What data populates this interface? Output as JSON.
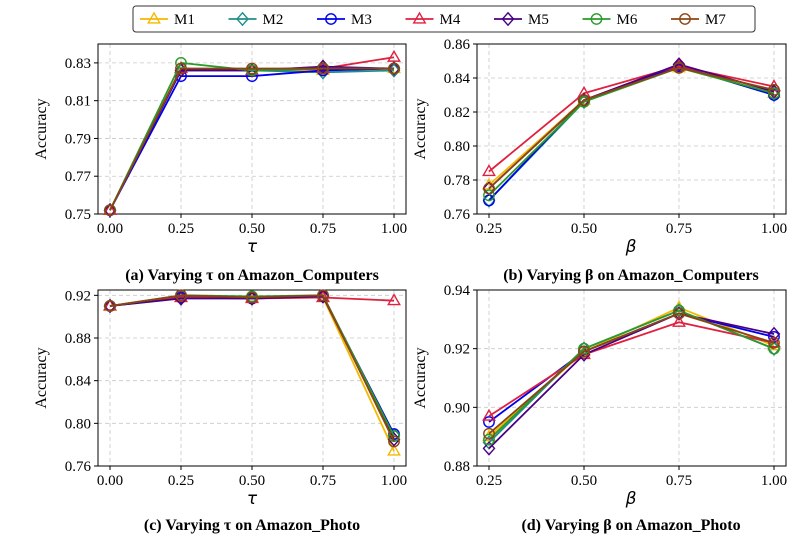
{
  "legend": {
    "placement": "top-center",
    "entries": [
      {
        "name": "M1",
        "color": "#f5b800",
        "marker": "triangle"
      },
      {
        "name": "M2",
        "color": "#1f8f8a",
        "marker": "diamond"
      },
      {
        "name": "M3",
        "color": "#0000ee",
        "marker": "circle"
      },
      {
        "name": "M4",
        "color": "#e0203e",
        "marker": "triangle"
      },
      {
        "name": "M5",
        "color": "#4b0082",
        "marker": "diamond"
      },
      {
        "name": "M6",
        "color": "#2a9a2a",
        "marker": "circle"
      },
      {
        "name": "M7",
        "color": "#8b4513",
        "marker": "circle"
      }
    ]
  },
  "chart_data": [
    {
      "type": "line",
      "caption": "(a) Varying τ on Amazon_Computers",
      "xlabel": "τ",
      "ylabel": "Accuracy",
      "grid": true,
      "x": [
        0.0,
        0.25,
        0.5,
        0.75,
        1.0
      ],
      "xticks": [
        "0.00",
        "0.25",
        "0.50",
        "0.75",
        "1.00"
      ],
      "ylim": [
        0.75,
        0.84
      ],
      "yticks": [
        "0.75",
        "0.77",
        "0.79",
        "0.81",
        "0.83"
      ],
      "series": [
        {
          "name": "M1",
          "values": [
            0.752,
            0.827,
            0.826,
            0.826,
            0.827
          ]
        },
        {
          "name": "M2",
          "values": [
            0.752,
            0.826,
            0.826,
            0.825,
            0.826
          ]
        },
        {
          "name": "M3",
          "values": [
            0.752,
            0.823,
            0.823,
            0.826,
            0.827
          ]
        },
        {
          "name": "M4",
          "values": [
            0.752,
            0.827,
            0.826,
            0.827,
            0.833
          ]
        },
        {
          "name": "M5",
          "values": [
            0.752,
            0.826,
            0.826,
            0.828,
            0.827
          ]
        },
        {
          "name": "M6",
          "values": [
            0.752,
            0.83,
            0.826,
            0.827,
            0.827
          ]
        },
        {
          "name": "M7",
          "values": [
            0.752,
            0.827,
            0.827,
            0.827,
            0.827
          ]
        }
      ]
    },
    {
      "type": "line",
      "caption": "(b) Varying β on Amazon_Computers",
      "xlabel": "β",
      "ylabel": "Accuracy",
      "grid": true,
      "x": [
        0.25,
        0.5,
        0.75,
        1.0
      ],
      "xticks": [
        "0.25",
        "0.50",
        "0.75",
        "1.00"
      ],
      "ylim": [
        0.76,
        0.86
      ],
      "yticks": [
        "0.76",
        "0.78",
        "0.80",
        "0.82",
        "0.84",
        "0.86"
      ],
      "series": [
        {
          "name": "M1",
          "values": [
            0.777,
            0.827,
            0.846,
            0.831
          ]
        },
        {
          "name": "M2",
          "values": [
            0.768,
            0.826,
            0.847,
            0.83
          ]
        },
        {
          "name": "M3",
          "values": [
            0.768,
            0.827,
            0.847,
            0.83
          ]
        },
        {
          "name": "M4",
          "values": [
            0.785,
            0.831,
            0.847,
            0.835
          ]
        },
        {
          "name": "M5",
          "values": [
            0.775,
            0.827,
            0.848,
            0.832
          ]
        },
        {
          "name": "M6",
          "values": [
            0.771,
            0.826,
            0.846,
            0.831
          ]
        },
        {
          "name": "M7",
          "values": [
            0.775,
            0.827,
            0.846,
            0.833
          ]
        }
      ]
    },
    {
      "type": "line",
      "caption": "(c) Varying τ on Amazon_Photo",
      "xlabel": "τ",
      "ylabel": "Accuracy",
      "grid": true,
      "x": [
        0.0,
        0.25,
        0.5,
        0.75,
        1.0
      ],
      "xticks": [
        "0.00",
        "0.25",
        "0.50",
        "0.75",
        "1.00"
      ],
      "ylim": [
        0.76,
        0.925
      ],
      "yticks": [
        "0.76",
        "0.80",
        "0.84",
        "0.88",
        "0.92"
      ],
      "series": [
        {
          "name": "M1",
          "values": [
            0.91,
            0.918,
            0.918,
            0.918,
            0.774
          ]
        },
        {
          "name": "M2",
          "values": [
            0.91,
            0.919,
            0.918,
            0.919,
            0.789
          ]
        },
        {
          "name": "M3",
          "values": [
            0.91,
            0.918,
            0.917,
            0.919,
            0.79
          ]
        },
        {
          "name": "M4",
          "values": [
            0.91,
            0.918,
            0.917,
            0.918,
            0.915
          ]
        },
        {
          "name": "M5",
          "values": [
            0.91,
            0.917,
            0.917,
            0.919,
            0.785
          ]
        },
        {
          "name": "M6",
          "values": [
            0.91,
            0.92,
            0.919,
            0.92,
            0.788
          ]
        },
        {
          "name": "M7",
          "values": [
            0.91,
            0.92,
            0.918,
            0.92,
            0.783
          ]
        }
      ]
    },
    {
      "type": "line",
      "caption": "(d) Varying β on Amazon_Photo",
      "xlabel": "β",
      "ylabel": "Accuracy",
      "grid": true,
      "x": [
        0.25,
        0.5,
        0.75,
        1.0
      ],
      "xticks": [
        "0.25",
        "0.50",
        "0.75",
        "1.00"
      ],
      "ylim": [
        0.88,
        0.94
      ],
      "yticks": [
        "0.88",
        "0.90",
        "0.92",
        "0.94"
      ],
      "series": [
        {
          "name": "M1",
          "values": [
            0.89,
            0.919,
            0.934,
            0.921
          ]
        },
        {
          "name": "M2",
          "values": [
            0.888,
            0.92,
            0.933,
            0.92
          ]
        },
        {
          "name": "M3",
          "values": [
            0.895,
            0.919,
            0.932,
            0.924
          ]
        },
        {
          "name": "M4",
          "values": [
            0.897,
            0.918,
            0.929,
            0.922
          ]
        },
        {
          "name": "M5",
          "values": [
            0.886,
            0.918,
            0.932,
            0.925
          ]
        },
        {
          "name": "M6",
          "values": [
            0.889,
            0.92,
            0.933,
            0.92
          ]
        },
        {
          "name": "M7",
          "values": [
            0.891,
            0.919,
            0.932,
            0.922
          ]
        }
      ]
    }
  ]
}
